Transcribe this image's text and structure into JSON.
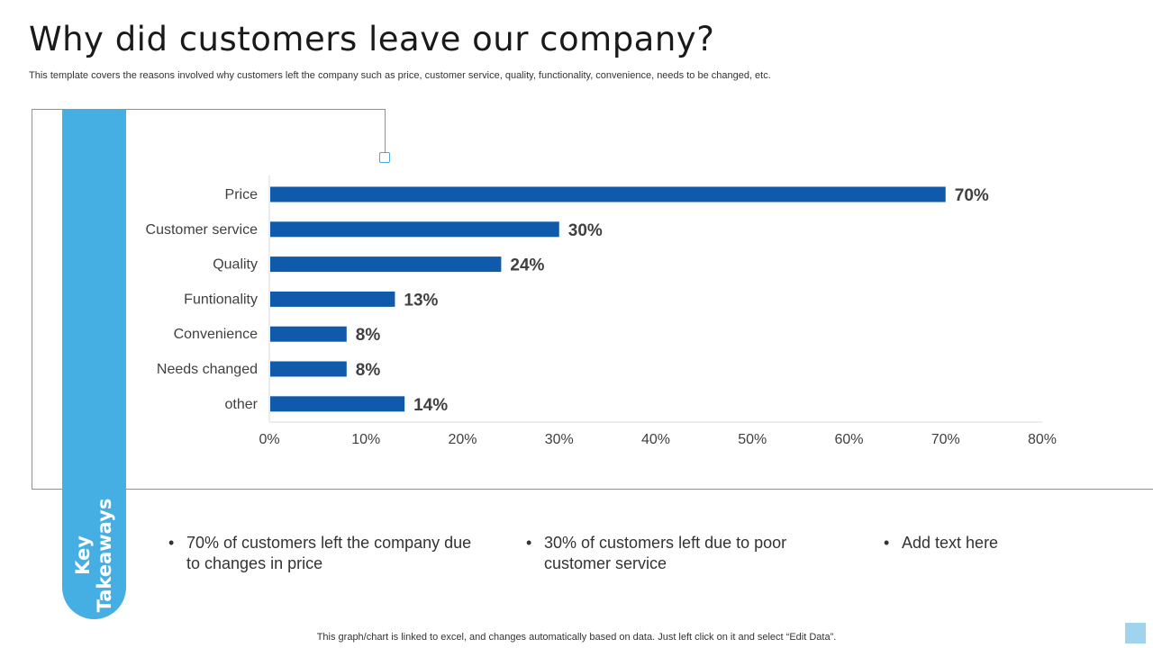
{
  "title": "Why did customers leave our company?",
  "subtitle": "This template covers the reasons involved why customers left the company such as price, customer service, quality, functionality, convenience, needs to be changed, etc.",
  "side_label": {
    "line1": "Key",
    "line2": "Takeaways"
  },
  "takeaways": [
    "70% of customers left the company due to changes in price",
    "30% of customers left due to poor customer service",
    "Add text here"
  ],
  "bullet_glyph": "•",
  "footer": "This graph/chart is linked to excel,  and changes automatically based on data. Just left click on it and select “Edit Data”.",
  "colors": {
    "bar": "#0f5aaa",
    "accent": "#45aee2"
  },
  "chart_data": {
    "type": "bar",
    "orientation": "horizontal",
    "categories": [
      "Price",
      "Customer service",
      "Quality",
      "Funtionality",
      "Convenience",
      "Needs changed",
      "other"
    ],
    "values": [
      70,
      30,
      24,
      13,
      8,
      8,
      14
    ],
    "data_labels": [
      "70%",
      "30%",
      "24%",
      "13%",
      "8%",
      "8%",
      "14%"
    ],
    "xlim": [
      0,
      80
    ],
    "xticks": [
      0,
      10,
      20,
      30,
      40,
      50,
      60,
      70,
      80
    ],
    "xtick_labels": [
      "0%",
      "10%",
      "20%",
      "30%",
      "40%",
      "50%",
      "60%",
      "70%",
      "80%"
    ],
    "title": "",
    "xlabel": "",
    "ylabel": "",
    "grid": false
  }
}
